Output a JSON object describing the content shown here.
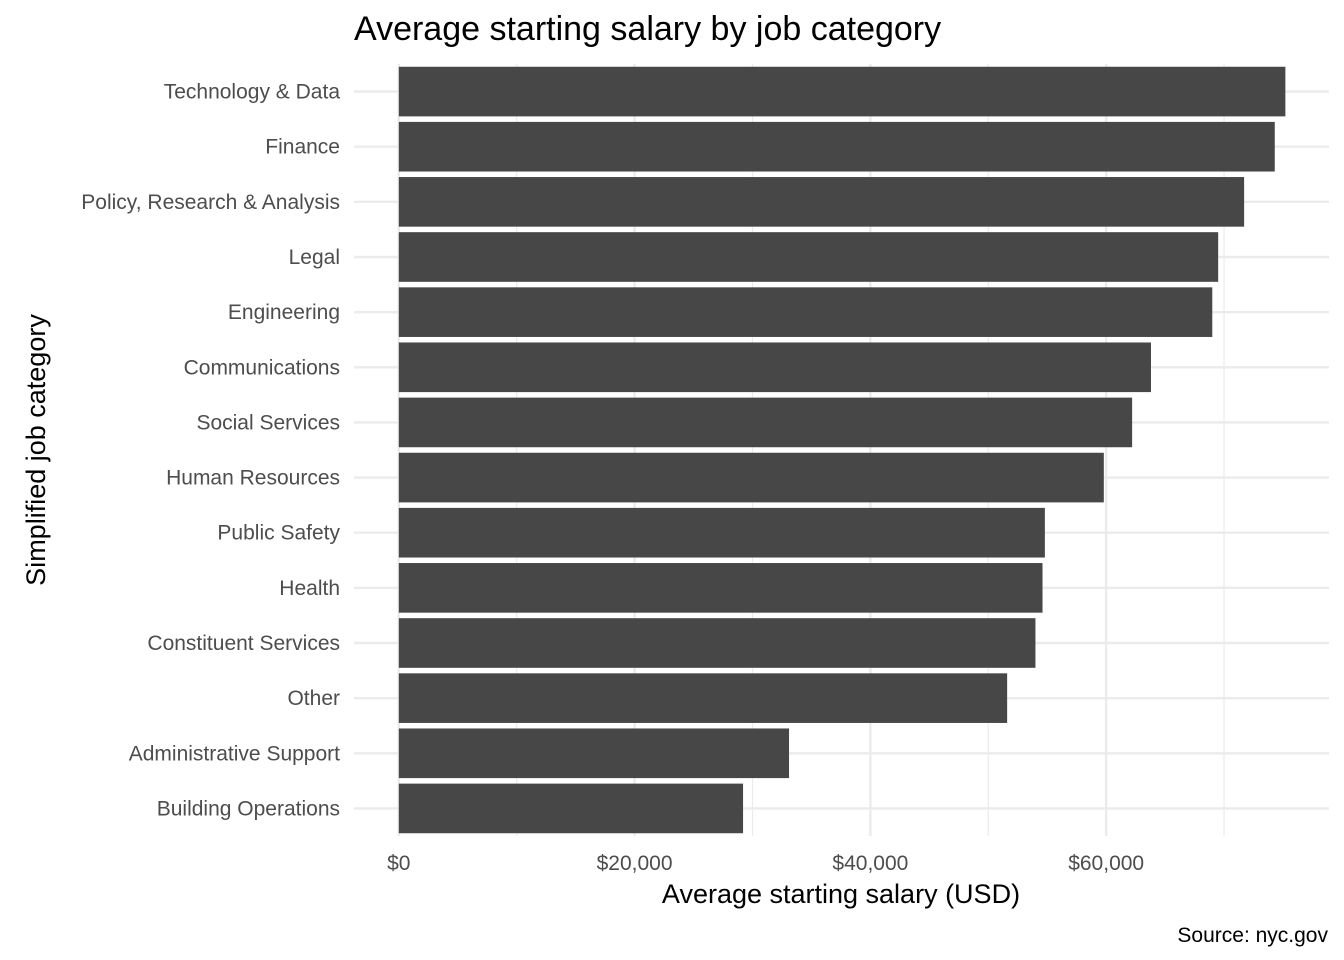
{
  "chart_data": {
    "type": "bar",
    "orientation": "horizontal",
    "title": "Average starting salary by job category",
    "xlabel": "Average starting salary (USD)",
    "ylabel": "Simplified job category",
    "caption": "Source: nyc.gov",
    "categories": [
      "Technology & Data",
      "Finance",
      "Policy, Research & Analysis",
      "Legal",
      "Engineering",
      "Communications",
      "Social Services",
      "Human Resources",
      "Public Safety",
      "Health",
      "Constituent Services",
      "Other",
      "Administrative Support",
      "Building Operations"
    ],
    "values": [
      75200,
      74300,
      71700,
      69500,
      69000,
      63800,
      62200,
      59800,
      54800,
      54600,
      54000,
      51600,
      33100,
      29200
    ],
    "xticks": [
      0,
      20000,
      40000,
      60000
    ],
    "xtick_labels": [
      "$0",
      "$20,000",
      "$40,000",
      "$60,000"
    ],
    "xlim": [
      -3800,
      78900
    ],
    "grid": true,
    "bar_color": "#474747",
    "grid_color": "#ebebeb"
  }
}
